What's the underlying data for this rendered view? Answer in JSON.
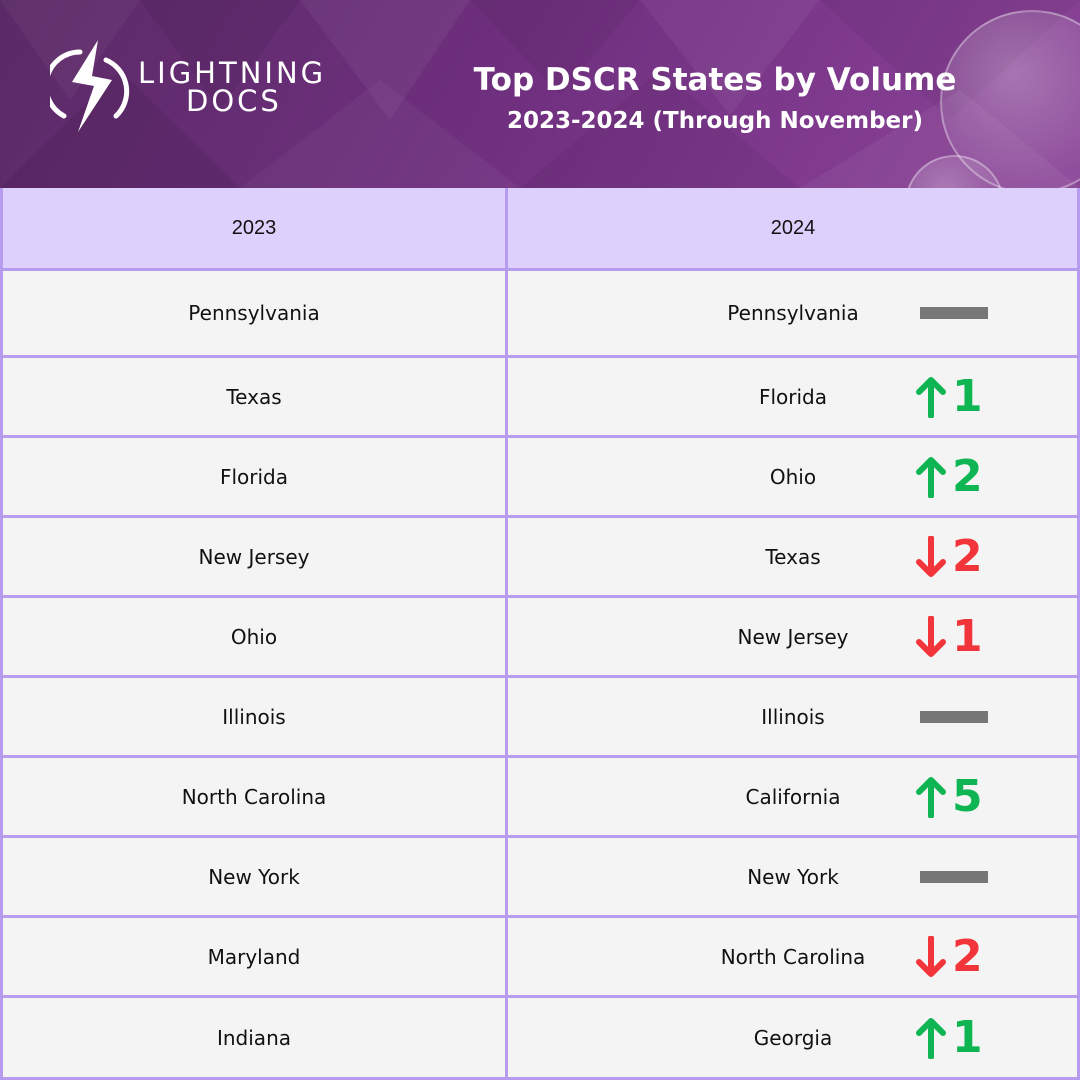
{
  "brand": {
    "line1": "LIGHTNING",
    "line2": "DOCS"
  },
  "header": {
    "title": "Top DSCR States by Volume",
    "subtitle": "2023-2024 (Through November)"
  },
  "colors": {
    "banner": "#6e2f7d",
    "header_row": "#ddd0fc",
    "border": "#b79bef",
    "up": "#0fb553",
    "down": "#f2353a",
    "same": "#777777"
  },
  "chart_data": {
    "type": "table",
    "columns": [
      "2023",
      "2024"
    ],
    "rows": [
      {
        "y2023": "Pennsylvania",
        "y2024": "Pennsylvania",
        "direction": "same",
        "change": ""
      },
      {
        "y2023": "Texas",
        "y2024": "Florida",
        "direction": "up",
        "change": "1"
      },
      {
        "y2023": "Florida",
        "y2024": "Ohio",
        "direction": "up",
        "change": "2"
      },
      {
        "y2023": "New Jersey",
        "y2024": "Texas",
        "direction": "down",
        "change": "2"
      },
      {
        "y2023": "Ohio",
        "y2024": "New Jersey",
        "direction": "down",
        "change": "1"
      },
      {
        "y2023": "Illinois",
        "y2024": "Illinois",
        "direction": "same",
        "change": ""
      },
      {
        "y2023": "North Carolina",
        "y2024": "California",
        "direction": "up",
        "change": "5"
      },
      {
        "y2023": "New York",
        "y2024": "New York",
        "direction": "same",
        "change": ""
      },
      {
        "y2023": "Maryland",
        "y2024": "North Carolina",
        "direction": "down",
        "change": "2"
      },
      {
        "y2023": "Indiana",
        "y2024": "Georgia",
        "direction": "up",
        "change": "1"
      }
    ]
  }
}
